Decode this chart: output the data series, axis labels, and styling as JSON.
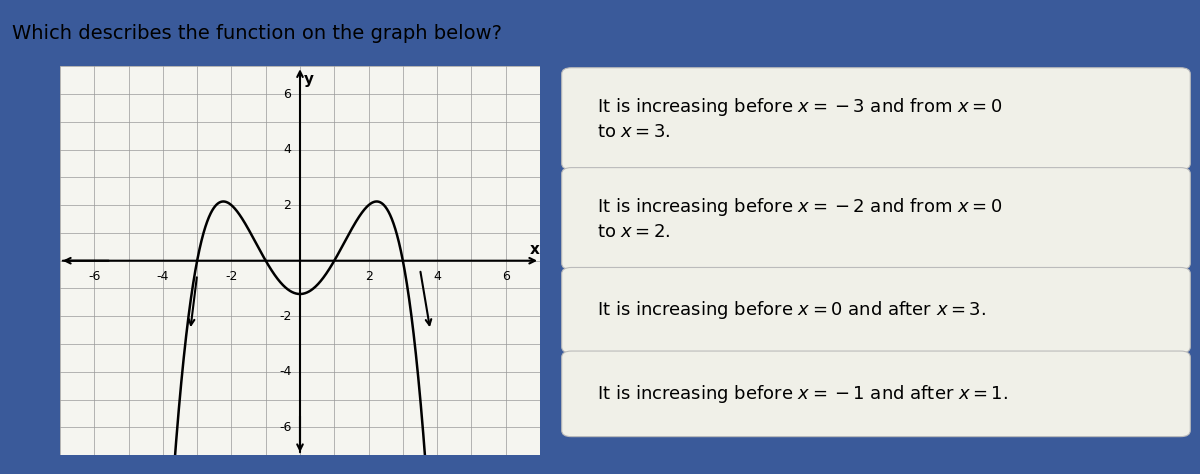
{
  "title": "Which describes the function on the graph below?",
  "title_fontsize": 14,
  "title_color": "#000000",
  "bg_color_outer": "#3a5a9a",
  "bg_color_left": "#e8eef5",
  "bg_color_right": "#3a6bb5",
  "graph_bg": "#f5f5f0",
  "xlim": [
    -7,
    7
  ],
  "ylim": [
    -7,
    7
  ],
  "xticks": [
    -6,
    -4,
    -2,
    2,
    4,
    6
  ],
  "yticks": [
    -6,
    -4,
    -2,
    2,
    4,
    6
  ],
  "xlabel": "x",
  "ylabel": "y",
  "grid_color": "#999999",
  "curve_color": "#000000",
  "curve_linewidth": 1.8,
  "options": [
    "It is increasing before $x = -3$ and from $x = 0$\nto $x = 3$.",
    "It is increasing before $x = -2$ and from $x = 0$\nto $x = 2$.",
    "It is increasing before $x = 0$ and after $x = 3$.",
    "It is increasing before $x = -1$ and after $x = 1$."
  ],
  "option_bg": "#f0f0e8",
  "option_text_color": "#000000",
  "option_fontsize": 13,
  "option_border_color": "#bbbbbb"
}
